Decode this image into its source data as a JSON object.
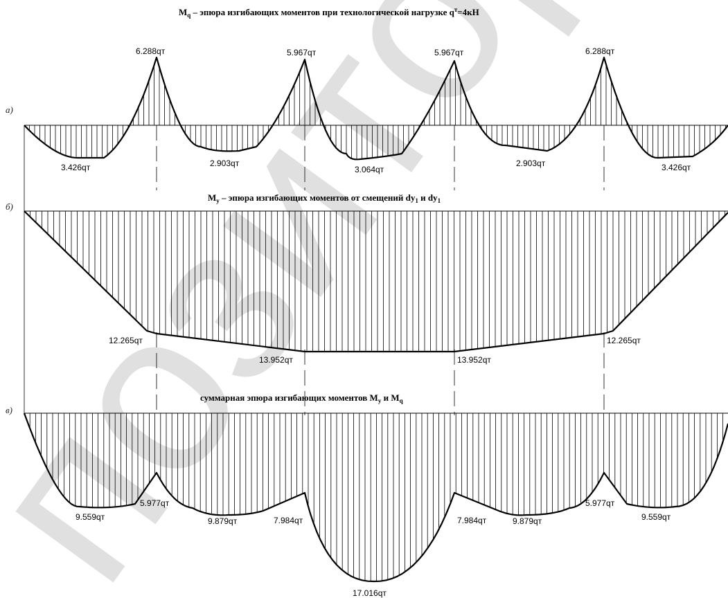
{
  "watermark": "позиторий Кар",
  "diagrams": [
    {
      "id": "a",
      "label": "а)",
      "title": "M",
      "title_sub": "q",
      "title_rest": " – эпюра изгибающих моментов при технологической нагрузке q",
      "title_sup": "т",
      "title_end": "=4кН",
      "values": [
        "6.288qт",
        "5.967qт",
        "5.967qт",
        "6.288qт",
        "3.426qт",
        "2.903qт",
        "3.064qт",
        "2.903qт",
        "3.426qт"
      ]
    },
    {
      "id": "b",
      "label": "б)",
      "title": "M",
      "title_sub": "y",
      "title_rest": " – эпюра изгибающих моментов от смещений dy",
      "title_sub2": "1",
      "title_mid": " и  dy",
      "title_sub3": "1",
      "values": [
        "12.265qт",
        "13.952qт",
        "13.952qт",
        "12.265qт"
      ]
    },
    {
      "id": "c",
      "label": "в)",
      "title": "суммарная эпюра изгибающих моментов M",
      "title_sub": "y",
      "title_mid": " и M",
      "title_sub2": "q",
      "values": [
        "9.559qт",
        "5.977qт",
        "9.879qт",
        "7.984qт",
        "17.016qт",
        "7.984qт",
        "9.879qт",
        "5.977qт",
        "9.559qт"
      ]
    }
  ]
}
